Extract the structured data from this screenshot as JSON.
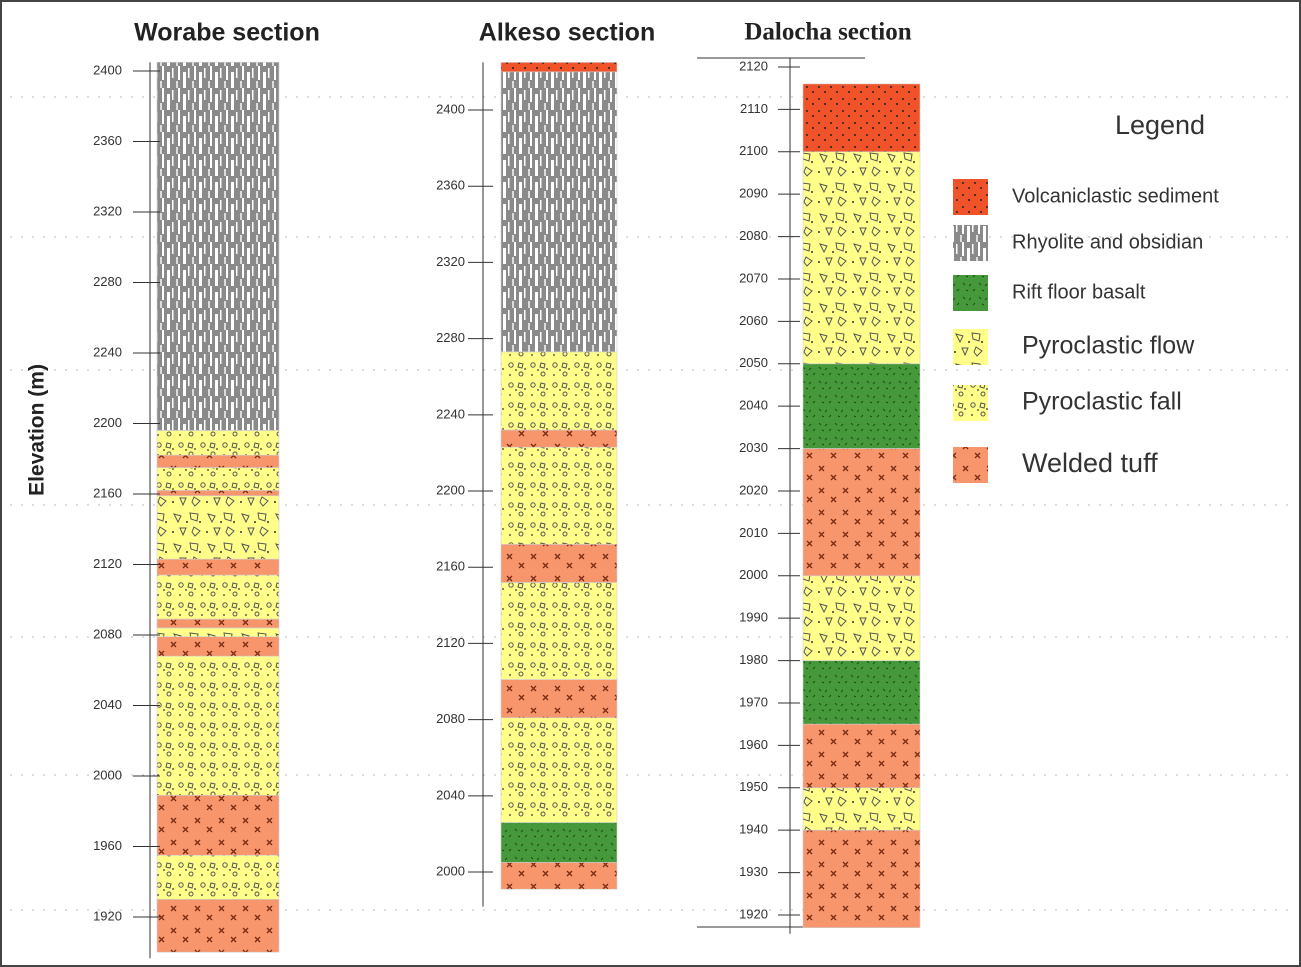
{
  "chart_data": {
    "type": "stratigraphic-column",
    "y_label": "Elevation (m)",
    "sections": [
      {
        "title": "Worabe section",
        "ylim": [
          1900,
          2405
        ],
        "yticks": [
          1920,
          1960,
          2000,
          2040,
          2080,
          2120,
          2160,
          2200,
          2240,
          2280,
          2320,
          2360,
          2400
        ]
      },
      {
        "title": "Alkeso section",
        "ylim": [
          1985,
          2425
        ],
        "yticks": [
          2000,
          2040,
          2080,
          2120,
          2160,
          2200,
          2240,
          2280,
          2320,
          2360,
          2400
        ]
      },
      {
        "title": "Dalocha section",
        "ylim": [
          1917,
          2122
        ],
        "yticks": [
          1920,
          1930,
          1940,
          1950,
          1960,
          1970,
          1980,
          1990,
          2000,
          2010,
          2020,
          2030,
          2040,
          2050,
          2060,
          2070,
          2080,
          2090,
          2100,
          2110,
          2120
        ]
      }
    ],
    "legend": {
      "title": "Legend"
    },
    "series": [
      {
        "name": "Volcaniclastic sediment",
        "color": "#f0522a",
        "intervals": [
          [],
          [
            [
              2420,
              2425
            ]
          ],
          [
            [
              2100,
              2116
            ]
          ]
        ]
      },
      {
        "name": "Rhyolite and obsidian",
        "color": "#8a8a8a",
        "intervals": [
          [
            [
              2196,
              2405
            ]
          ],
          [
            [
              2273,
              2420
            ]
          ],
          []
        ]
      },
      {
        "name": "Rift floor basalt",
        "color": "#46993a",
        "intervals": [
          [],
          [
            [
              2005,
              2026
            ]
          ],
          [
            [
              2030,
              2050
            ],
            [
              1965,
              1980
            ]
          ]
        ]
      },
      {
        "name": "Pyroclastic flow",
        "color": "#ffff8a",
        "intervals": [
          [
            [
              2123,
              2159
            ],
            [
              2079,
              2084
            ]
          ],
          [],
          [
            [
              2050,
              2100
            ],
            [
              1980,
              2000
            ],
            [
              1940,
              1950
            ]
          ]
        ]
      },
      {
        "name": "Pyroclastic fall",
        "color": "#ffff8a",
        "intervals": [
          [
            [
              2182,
              2196
            ],
            [
              2162,
              2175
            ],
            [
              2089,
              2114
            ],
            [
              1989,
              2068
            ],
            [
              1930,
              1955
            ]
          ],
          [
            [
              2232,
              2273
            ],
            [
              2172,
              2223
            ],
            [
              2101,
              2152
            ],
            [
              2026,
              2081
            ]
          ],
          []
        ]
      },
      {
        "name": "Welded tuff",
        "color": "#f7956c",
        "intervals": [
          [
            [
              2175,
              2182
            ],
            [
              2159,
              2162
            ],
            [
              2114,
              2123
            ],
            [
              2084,
              2089
            ],
            [
              2068,
              2079
            ],
            [
              1955,
              1989
            ],
            [
              1900,
              1930
            ]
          ],
          [
            [
              2223,
              2232
            ],
            [
              2152,
              2172
            ],
            [
              2081,
              2101
            ],
            [
              1991,
              2005
            ]
          ],
          [
            [
              2000,
              2030
            ],
            [
              1950,
              1965
            ],
            [
              1917,
              1940
            ]
          ]
        ]
      }
    ]
  }
}
